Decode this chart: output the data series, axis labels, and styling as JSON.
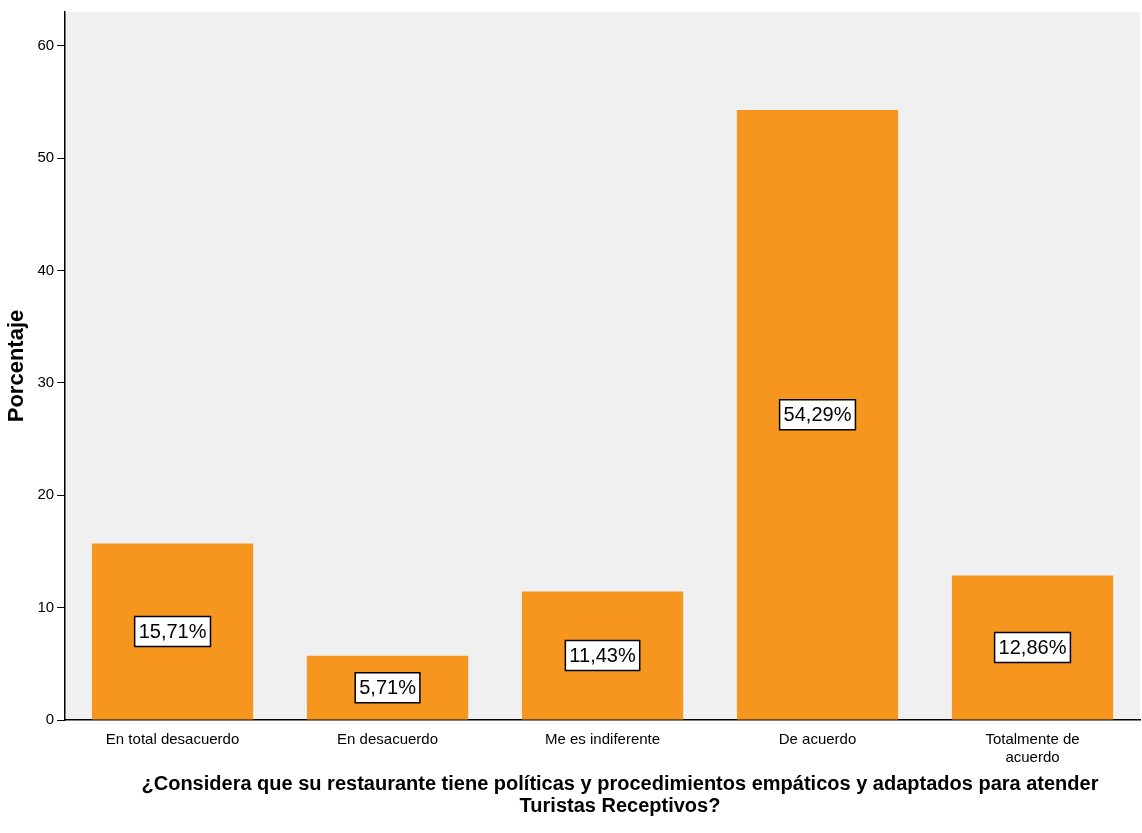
{
  "chart_data": {
    "type": "bar",
    "xlabel": "¿Considera que su restaurante tiene políticas y procedimientos empáticos y adaptados para atender Turistas Receptivos?",
    "ylabel": "Porcentaje",
    "categories": [
      "En total desacuerdo",
      "En desacuerdo",
      "Me es indiferente",
      "De acuerdo",
      "Totalmente de acuerdo"
    ],
    "values": [
      15.71,
      5.71,
      11.43,
      54.29,
      12.86
    ],
    "value_labels": [
      "15,71%",
      "5,71%",
      "11,43%",
      "54,29%",
      "12,86%"
    ],
    "color": "#f7961e",
    "ylim": [
      0,
      63
    ],
    "yticks": [
      0,
      10,
      20,
      30,
      40,
      50,
      60
    ],
    "grid": false,
    "legend": false
  }
}
